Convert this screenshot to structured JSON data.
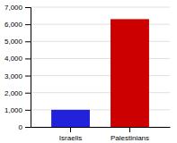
{
  "chart_data": {
    "type": "bar",
    "categories": [
      "Israelis",
      "Palestinians"
    ],
    "values": [
      1000,
      6300
    ],
    "colors": [
      "#2222dd",
      "#cc0000"
    ],
    "ylim": [
      0,
      7000
    ],
    "yticks": [
      0,
      {
        "value": 1000,
        "label": "1,000"
      },
      {
        "value": 2000,
        "label": "2,000"
      },
      {
        "value": 3000,
        "label": "3,000"
      },
      {
        "value": 4000,
        "label": "4,000"
      },
      {
        "value": 5000,
        "label": "5,000"
      },
      {
        "value": 6000,
        "label": "6,000"
      },
      {
        "value": 7000,
        "label": "7,000"
      }
    ],
    "grid": true
  }
}
